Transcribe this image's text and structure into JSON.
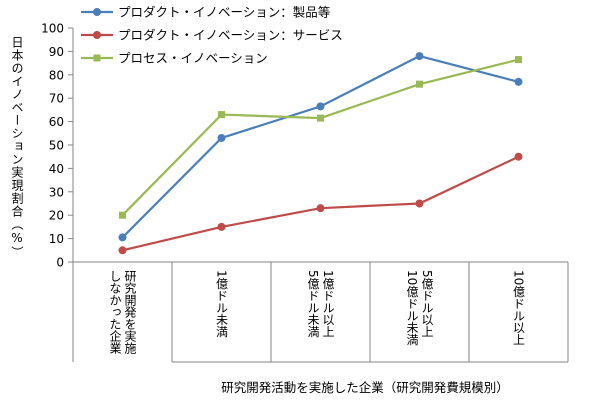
{
  "chart_data": {
    "type": "line",
    "ylabel": "日本のイノベーション実現割合（%）",
    "xlabel": "研究開発活動を実施した企業（研究開発費規模別）",
    "ylim": [
      0,
      100
    ],
    "yticks": [
      0,
      10,
      20,
      30,
      40,
      50,
      60,
      70,
      80,
      90,
      100
    ],
    "grid": false,
    "legend_position": "top-left",
    "categories": [
      [
        "研究開発を実施",
        "しなかった企業"
      ],
      [
        "1億ドル未満"
      ],
      [
        "1億ドル以上",
        "5億ドル未満"
      ],
      [
        "5億ドル以上",
        "10億ドル未満"
      ],
      [
        "10億ドル以上"
      ]
    ],
    "series": [
      {
        "name": "プロダクト・イノベーション：製品等",
        "color": "#4a7ebb",
        "marker": "circle",
        "values": [
          10.5,
          53,
          66.5,
          88,
          77
        ]
      },
      {
        "name": "プロダクト・イノベーション：サービス",
        "color": "#be4b48",
        "marker": "circle",
        "values": [
          5,
          15,
          23,
          25,
          45
        ]
      },
      {
        "name": "プロセス・イノベーション",
        "color": "#98b954",
        "marker": "square",
        "values": [
          20,
          63,
          61.5,
          76,
          86.5
        ]
      }
    ]
  }
}
